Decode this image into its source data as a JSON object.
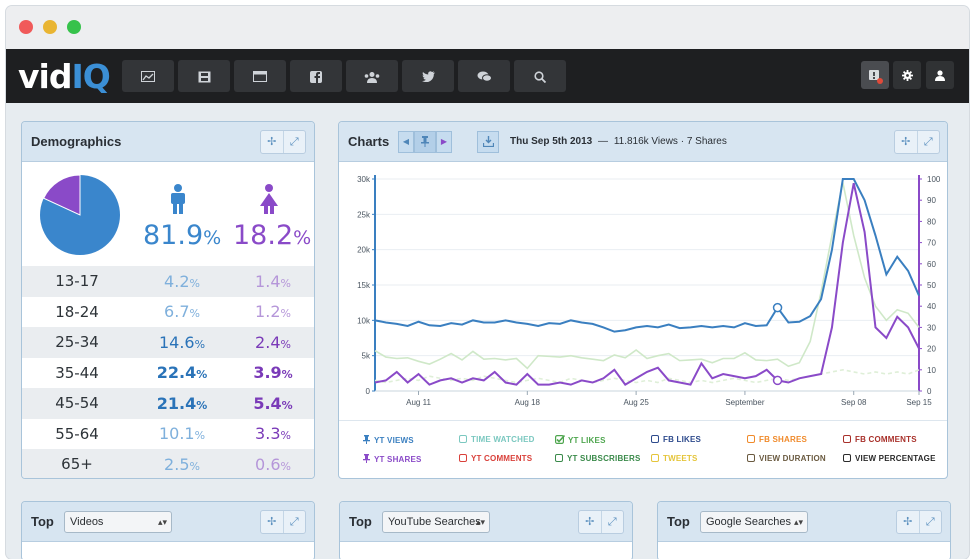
{
  "window": {
    "controls": [
      {
        "name": "close",
        "color": "#f05a5a"
      },
      {
        "name": "minimize",
        "color": "#e9b533"
      },
      {
        "name": "maximize",
        "color": "#36c24b"
      }
    ]
  },
  "navbar": {
    "logo_vid": "vid",
    "logo_iq": "IQ",
    "items": [
      "dashboard-icon",
      "film-icon",
      "browser-icon",
      "facebook-icon",
      "users-icon",
      "twitter-icon",
      "chat-icon",
      "search-icon"
    ],
    "right_items": [
      "alert-icon",
      "gear-icon",
      "user-icon"
    ]
  },
  "demographics": {
    "title": "Demographics",
    "male_pct": "81.9",
    "female_pct": "18.2",
    "pct_symbol": "%",
    "pie_male_fraction": 0.819,
    "male_color": "#3a86cc",
    "female_color": "#8a4ac8",
    "rows": [
      {
        "age": "13-17",
        "male": "4.2",
        "female": "1.4"
      },
      {
        "age": "18-24",
        "male": "6.7",
        "female": "1.2"
      },
      {
        "age": "25-34",
        "male": "14.6",
        "female": "2.4"
      },
      {
        "age": "35-44",
        "male": "22.4",
        "female": "3.9"
      },
      {
        "age": "45-54",
        "male": "21.4",
        "female": "5.4"
      },
      {
        "age": "55-64",
        "male": "10.1",
        "female": "3.3"
      },
      {
        "age": "65+",
        "male": "2.5",
        "female": "0.6"
      }
    ]
  },
  "charts": {
    "title": "Charts",
    "date": "Thu Sep 5th 2013",
    "separator": "—",
    "summary": "11.816k Views · 7 Shares",
    "legend": [
      {
        "label": "YT VIEWS",
        "color": "#3a7fc0",
        "icon": "pin"
      },
      {
        "label": "TIME WATCHED",
        "color": "#7bc8c0",
        "icon": "box"
      },
      {
        "label": "YT LIKES",
        "color": "#4fa64f",
        "icon": "check"
      },
      {
        "label": "FB LIKES",
        "color": "#2d4a8c",
        "icon": "box"
      },
      {
        "label": "FB SHARES",
        "color": "#f08a2a",
        "icon": "box"
      },
      {
        "label": "FB COMMENTS",
        "color": "#a8302a",
        "icon": "box"
      },
      {
        "label": "YT SHARES",
        "color": "#8a4ac8",
        "icon": "pin"
      },
      {
        "label": "YT COMMENTS",
        "color": "#d9403a",
        "icon": "box"
      },
      {
        "label": "YT SUBSCRIBERS",
        "color": "#3a8a4a",
        "icon": "box"
      },
      {
        "label": "TWEETS",
        "color": "#e5c53a",
        "icon": "box"
      },
      {
        "label": "VIEW DURATION",
        "color": "#6a5a40",
        "icon": "box"
      },
      {
        "label": "VIEW PERCENTAGE",
        "color": "#2a2a2a",
        "icon": "box"
      }
    ]
  },
  "chart_data": {
    "type": "line",
    "x": [
      0,
      1,
      2,
      3,
      4,
      5,
      6,
      7,
      8,
      9,
      10,
      11,
      12,
      13,
      14,
      15,
      16,
      17,
      18,
      19,
      20,
      21,
      22,
      23,
      24,
      25,
      26,
      27,
      28,
      29,
      30,
      31,
      32,
      33,
      34,
      35,
      36,
      37,
      38,
      39,
      40,
      41,
      42,
      43,
      44,
      45,
      46,
      47,
      48,
      49,
      50
    ],
    "x_tick_labels": [
      {
        "x": 4,
        "label": "Aug 11"
      },
      {
        "x": 14,
        "label": "Aug 18"
      },
      {
        "x": 24,
        "label": "Aug 25"
      },
      {
        "x": 34,
        "label": "September"
      },
      {
        "x": 44,
        "label": "Sep 08"
      },
      {
        "x": 50,
        "label": "Sep 15"
      }
    ],
    "ylim_left": [
      0,
      30000
    ],
    "yticks_left": [
      "0",
      "5k",
      "10k",
      "15k",
      "20k",
      "25k",
      "30k"
    ],
    "ylim_right": [
      0,
      100
    ],
    "yticks_right": [
      "0",
      "10",
      "20",
      "30",
      "40",
      "50",
      "60",
      "70",
      "80",
      "90",
      "100"
    ],
    "series": [
      {
        "name": "YT VIEWS",
        "axis": "left",
        "color": "#3a7fc0",
        "values": [
          10000,
          9700,
          9500,
          9200,
          9800,
          9300,
          9200,
          9600,
          9400,
          10000,
          9700,
          9700,
          10000,
          9700,
          9500,
          9200,
          9600,
          9500,
          10000,
          9700,
          9500,
          9000,
          8400,
          8600,
          9000,
          9200,
          9000,
          9400,
          8900,
          9000,
          9200,
          9000,
          9200,
          9000,
          9600,
          9200,
          9300,
          11800,
          9700,
          9800,
          10600,
          13000,
          20000,
          30000,
          30000,
          27000,
          22000,
          16500,
          19000,
          17000,
          13500
        ]
      },
      {
        "name": "YT SHARES",
        "axis": "right",
        "color": "#8a4ac8",
        "values": [
          4,
          5,
          9,
          4,
          8,
          3,
          5,
          6,
          4,
          6,
          5,
          9,
          4,
          3,
          8,
          3,
          3,
          4,
          3,
          5,
          4,
          6,
          10,
          3,
          6,
          9,
          11,
          5,
          4,
          3,
          13,
          6,
          8,
          7,
          6,
          7,
          10,
          5,
          4,
          6,
          7,
          8,
          30,
          70,
          98,
          75,
          30,
          25,
          35,
          30,
          20
        ]
      },
      {
        "name": "TIME WATCHED",
        "axis": "left",
        "color": "#cfe8c8",
        "values": [
          5700,
          4800,
          4600,
          4700,
          4200,
          3800,
          4500,
          5300,
          4400,
          5600,
          4500,
          4600,
          4400,
          4600,
          3200,
          5000,
          4900,
          4800,
          5000,
          4700,
          4500,
          4300,
          5100,
          4700,
          5800,
          4600,
          5000,
          5300,
          4300,
          4400,
          4500,
          4000,
          4600,
          4600,
          5400,
          4400,
          4300,
          4500,
          3500,
          4000,
          7000,
          14000,
          22000,
          29500,
          22000,
          16000,
          12000,
          10000,
          11500,
          11000,
          9000
        ]
      },
      {
        "name": "YT LIKES",
        "axis": "right",
        "color": "#dfefd8",
        "values": [
          5,
          4,
          5,
          6,
          5,
          7,
          6,
          5,
          6,
          5,
          7,
          6,
          5,
          4,
          5,
          6,
          5,
          4,
          6,
          5,
          4,
          5,
          6,
          5,
          4,
          5,
          4,
          6,
          5,
          4,
          5,
          4,
          5,
          6,
          5,
          4,
          5,
          6,
          5,
          6,
          7,
          8,
          9,
          10,
          9,
          8,
          9,
          8,
          9,
          8,
          10
        ]
      }
    ],
    "markers": [
      {
        "series": "YT VIEWS",
        "x": 37,
        "y": 11800
      },
      {
        "series": "YT SHARES",
        "x": 37,
        "y": 5
      }
    ]
  },
  "bottom_panels": [
    {
      "title": "Top",
      "select": "Videos"
    },
    {
      "title": "Top",
      "select": "YouTube Searches"
    },
    {
      "title": "Top",
      "select": "Google Searches"
    }
  ]
}
